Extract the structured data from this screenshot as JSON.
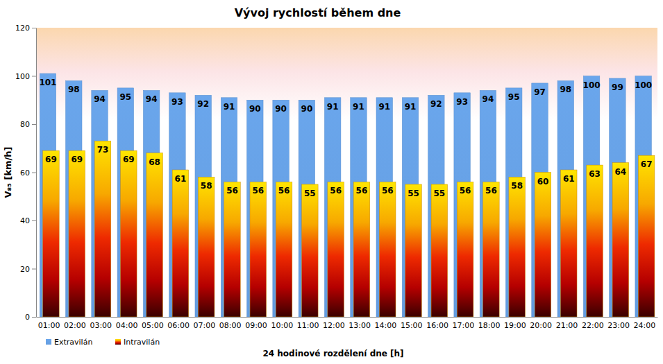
{
  "chart_data": {
    "type": "bar",
    "title": "Vývoj rychlostí během dne",
    "x_label": "24 hodinové rozdělení dne [h]",
    "y_label": "V₈₅ [km/h]",
    "categories": [
      "01:00",
      "02:00",
      "03:00",
      "04:00",
      "05:00",
      "06:00",
      "07:00",
      "08:00",
      "09:00",
      "10:00",
      "11:00",
      "12:00",
      "13:00",
      "14:00",
      "15:00",
      "16:00",
      "17:00",
      "18:00",
      "19:00",
      "20:00",
      "21:00",
      "22:00",
      "23:00",
      "24:00"
    ],
    "series": [
      {
        "name": "Extravilán",
        "color": "#6aa6ec",
        "values": [
          101,
          98,
          94,
          95,
          94,
          93,
          92,
          91,
          90,
          90,
          90,
          91,
          91,
          91,
          91,
          92,
          93,
          94,
          95,
          97,
          98,
          100,
          99,
          100
        ]
      },
      {
        "name": "Intravilán",
        "color": "#ffe600",
        "values": [
          69,
          69,
          73,
          69,
          68,
          61,
          58,
          56,
          56,
          56,
          55,
          56,
          56,
          56,
          55,
          55,
          56,
          56,
          58,
          60,
          61,
          63,
          64,
          67
        ]
      }
    ],
    "ylim": [
      0,
      120
    ],
    "yticks": [
      0,
      20,
      40,
      60,
      80,
      100,
      120
    ],
    "grid": false,
    "legend": "bottom-left",
    "data_labels": true
  }
}
